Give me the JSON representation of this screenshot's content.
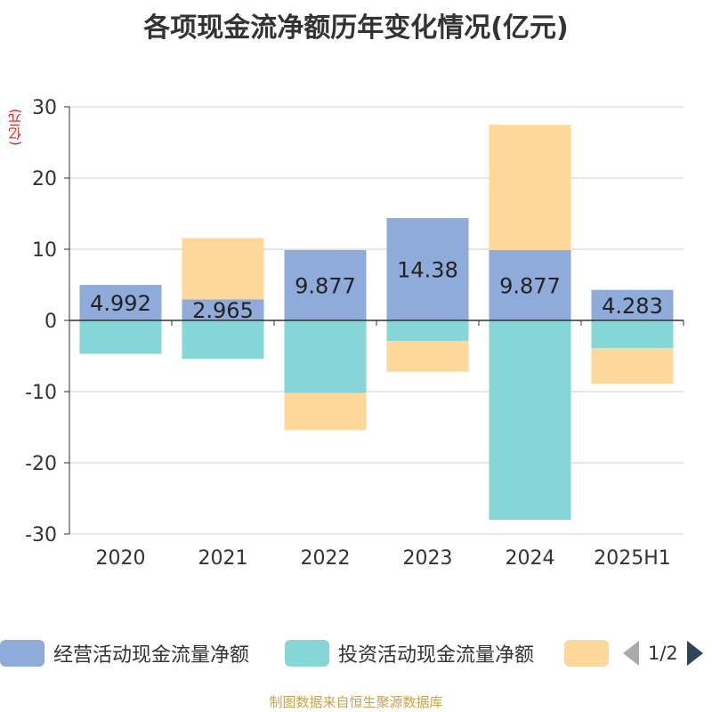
{
  "chart_data": {
    "type": "bar",
    "stacked": true,
    "title": "各项现金流净额历年变化情况(亿元)",
    "ylabel": "(亿元)",
    "categories": [
      "2020",
      "2021",
      "2022",
      "2023",
      "2024",
      "2025H1"
    ],
    "ylim": [
      -30,
      30
    ],
    "yticks": [
      30,
      20,
      10,
      0,
      -10,
      -20,
      -30
    ],
    "grid": true,
    "series": [
      {
        "name": "经营活动现金流量净额",
        "color": "#8eabda",
        "values": [
          4.992,
          2.965,
          9.877,
          14.38,
          9.877,
          4.283
        ],
        "labels": [
          "4.992",
          "2.965",
          "9.877",
          "14.38",
          "9.877",
          "4.283"
        ]
      },
      {
        "name": "投资活动现金流量净额",
        "color": "#86d5d7",
        "values": [
          -4.7,
          -5.4,
          -10.2,
          -2.9,
          -28.0,
          -3.9
        ]
      },
      {
        "name": "",
        "color": "#fed89b",
        "values": [
          0,
          8.6,
          -5.2,
          -4.3,
          17.6,
          -5.0
        ]
      }
    ]
  },
  "legend": {
    "items": [
      {
        "label": "经营活动现金流量净额",
        "color": "#8eabda"
      },
      {
        "label": "投资活动现金流量净额",
        "color": "#86d5d7"
      },
      {
        "label": "",
        "color": "#fed89b"
      }
    ],
    "page_indicator": "1/2"
  },
  "footer": "制图数据来自恒生聚源数据库"
}
